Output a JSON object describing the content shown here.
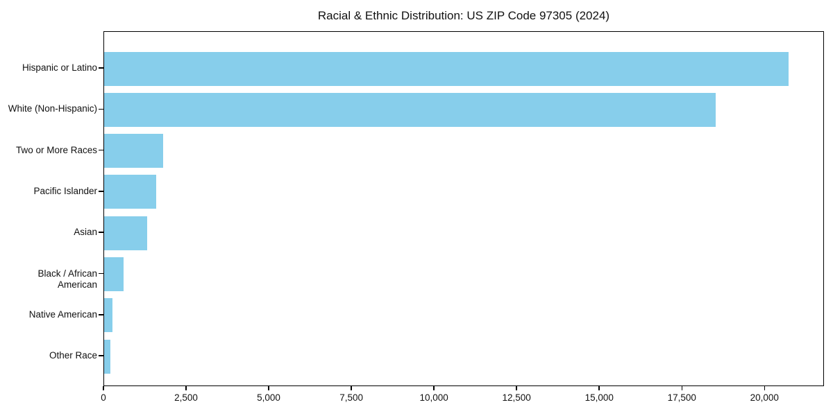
{
  "title": "Racial & Ethnic Distribution: US ZIP Code 97305 (2024)",
  "chart_data": {
    "type": "bar",
    "orientation": "horizontal",
    "title": "Racial & Ethnic Distribution: US ZIP Code 97305 (2024)",
    "categories": [
      "Hispanic or Latino",
      "White (Non-Hispanic)",
      "Two or More Races",
      "Pacific Islander",
      "Asian",
      "Black / African American",
      "Native American",
      "Other Race"
    ],
    "values": [
      20750,
      18530,
      1790,
      1580,
      1300,
      590,
      250,
      195
    ],
    "xlabel": "",
    "ylabel": "",
    "xlim": [
      0,
      21800
    ],
    "x_ticks": [
      {
        "value": 0,
        "label": "0"
      },
      {
        "value": 2500,
        "label": "2,500"
      },
      {
        "value": 5000,
        "label": "5,000"
      },
      {
        "value": 7500,
        "label": "7,500"
      },
      {
        "value": 10000,
        "label": "10,000"
      },
      {
        "value": 12500,
        "label": "12,500"
      },
      {
        "value": 15000,
        "label": "15,000"
      },
      {
        "value": 17500,
        "label": "17,500"
      },
      {
        "value": 20000,
        "label": "20,000"
      }
    ],
    "bar_color": "#87CEEB",
    "grid": false,
    "legend": null
  }
}
